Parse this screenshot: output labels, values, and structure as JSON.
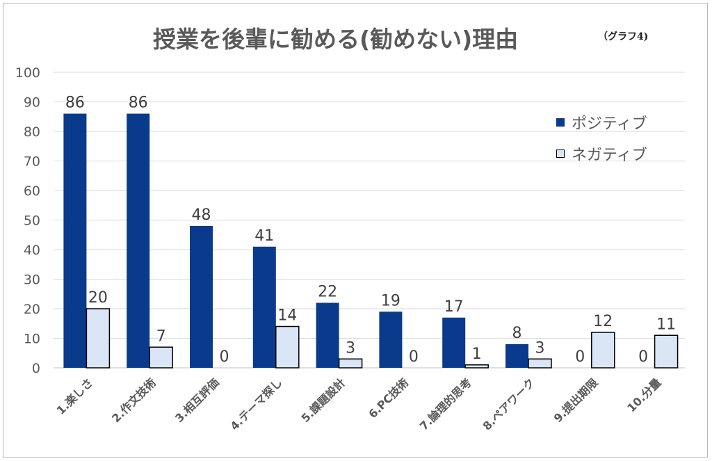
{
  "chart_data": {
    "type": "bar",
    "title": "授業を後輩に勧める(勧めない)理由",
    "note": "（グラフ4)",
    "categories": [
      "1.楽しさ",
      "2.作文技術",
      "3.相互評価",
      "4.テーマ探し",
      "5.課題設計",
      "6.PC技術",
      "7.論理的思考",
      "8.ペアワーク",
      "9.提出期限",
      "10.分量"
    ],
    "series": [
      {
        "name": "ポジティブ",
        "values": [
          86,
          86,
          48,
          41,
          22,
          19,
          17,
          8,
          0,
          0
        ],
        "color": "#0a3a8c",
        "stroke": "#0a3a8c"
      },
      {
        "name": "ネガティブ",
        "values": [
          20,
          7,
          0,
          14,
          3,
          0,
          1,
          3,
          12,
          11
        ],
        "color": "#dae6f6",
        "stroke": "#000000"
      }
    ],
    "ylim": [
      0,
      100
    ],
    "yticks": [
      0,
      10,
      20,
      30,
      40,
      50,
      60,
      70,
      80,
      90,
      100
    ],
    "grid": true,
    "legend": "right"
  }
}
